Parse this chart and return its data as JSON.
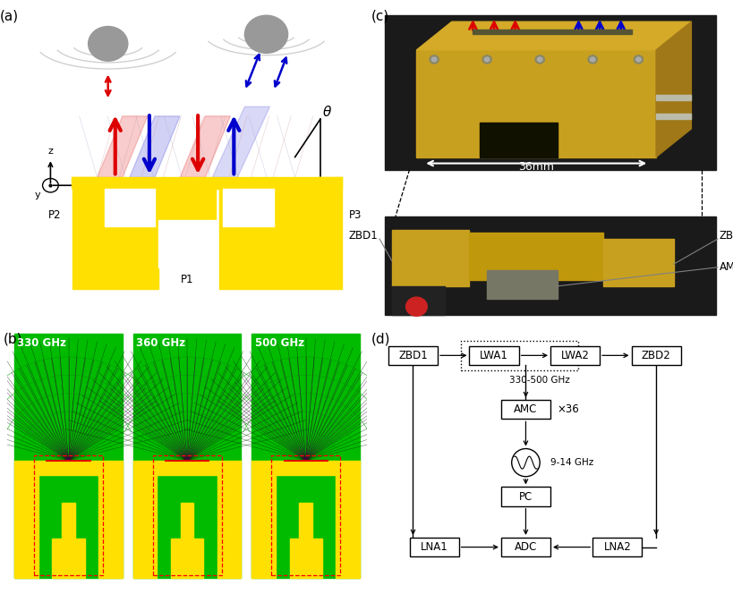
{
  "panel_a_label": "(a)",
  "panel_b_label": "(b)",
  "panel_c_label": "(c)",
  "panel_d_label": "(d)",
  "freq_labels": [
    "330 GHz",
    "360 GHz",
    "500 GHz"
  ],
  "port_labels": [
    "P1",
    "P2",
    "P3"
  ],
  "theta_label": "θ",
  "dimension_label": "36mm",
  "block_labels_top": [
    "ZBD1",
    "LWA1",
    "LWA2",
    "ZBD2"
  ],
  "freq_range_label": "330-500 GHz",
  "amc_label": "AMC",
  "amc_x36_label": "×36",
  "osc_label": "9-14 GHz",
  "pc_label": "PC",
  "block_labels_bottom": [
    "LNA1",
    "ADC",
    "LNA2"
  ],
  "yellow_color": "#FFE000",
  "red_color": "#DD0000",
  "blue_color": "#0000CC",
  "green_color": "#00BB00",
  "bg_color": "#FFFFFF"
}
